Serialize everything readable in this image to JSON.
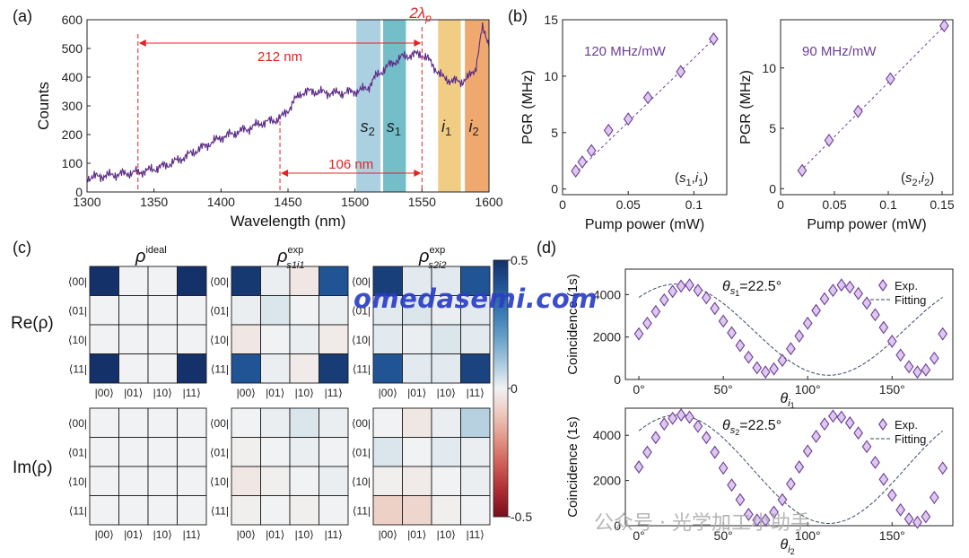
{
  "panel_labels": [
    "(a)",
    "(b)",
    "(c)",
    "(d)"
  ],
  "watermark": "omedasemi.com",
  "watermark_wechat": "公众号 · 光学加工小助手",
  "chart_data": [
    {
      "id": "a",
      "type": "line",
      "xlabel": "Wavelength (nm)",
      "ylabel": "Counts",
      "xlim": [
        1300,
        1600
      ],
      "ylim": [
        0,
        600
      ],
      "xticks": [
        "1300",
        "1350",
        "1400",
        "1450",
        "1500",
        "1550",
        "1600"
      ],
      "yticks": [
        "0",
        "100",
        "200",
        "300",
        "400",
        "500",
        "600"
      ],
      "series": [
        {
          "color": "#5b2a86",
          "x": [
            1300,
            1310,
            1320,
            1330,
            1340,
            1350,
            1360,
            1370,
            1380,
            1390,
            1400,
            1410,
            1420,
            1430,
            1440,
            1445,
            1450,
            1455,
            1460,
            1465,
            1470,
            1480,
            1490,
            1500,
            1505,
            1510,
            1515,
            1520,
            1525,
            1530,
            1535,
            1540,
            1545,
            1550,
            1555,
            1560,
            1565,
            1570,
            1575,
            1580,
            1585,
            1590,
            1595,
            1600
          ],
          "y": [
            50,
            55,
            60,
            65,
            70,
            80,
            95,
            115,
            140,
            165,
            190,
            205,
            220,
            240,
            250,
            260,
            285,
            320,
            345,
            350,
            350,
            345,
            345,
            350,
            355,
            365,
            400,
            420,
            440,
            455,
            470,
            475,
            480,
            480,
            460,
            430,
            400,
            390,
            385,
            385,
            400,
            430,
            570,
            520
          ]
        }
      ],
      "bands": [
        {
          "label": "s2",
          "from": 1501,
          "to": 1519,
          "color": "#9cc8dc"
        },
        {
          "label": "s1",
          "from": 1521,
          "to": 1538,
          "color": "#5ab3c0"
        },
        {
          "label": "i1",
          "from": 1562,
          "to": 1579,
          "color": "#efc46e"
        },
        {
          "label": "i2",
          "from": 1582,
          "to": 1600,
          "color": "#ec9a55"
        }
      ],
      "annotations": [
        {
          "text": "212 nm",
          "from": 1338,
          "to": 1550
        },
        {
          "text": "106 nm",
          "from": 1444,
          "to": 1550
        },
        {
          "text": "2λp",
          "at": 1550
        }
      ]
    },
    {
      "id": "b1",
      "type": "scatter",
      "xlabel": "Pump power (mW)",
      "ylabel": "PGR (MHz)",
      "xlim": [
        0,
        0.125
      ],
      "ylim": [
        -0.5,
        15
      ],
      "xticks": [
        "0",
        "0.05",
        "0.1"
      ],
      "yticks": [
        "0",
        "5",
        "10",
        "15"
      ],
      "annotation": "120 MHz/mW",
      "pair": "(s1,i1)",
      "x": [
        0.01,
        0.015,
        0.022,
        0.035,
        0.05,
        0.065,
        0.09,
        0.115
      ],
      "y": [
        1.6,
        2.4,
        3.4,
        5.2,
        6.2,
        8.1,
        10.4,
        13.3
      ],
      "fit_slope": 113.0,
      "fit_intercept": 0.3
    },
    {
      "id": "b2",
      "type": "scatter",
      "xlabel": "Pump power (mW)",
      "ylabel": "PGR (MHz)",
      "xlim": [
        0,
        0.16
      ],
      "ylim": [
        -0.5,
        14
      ],
      "xticks": [
        "0",
        "0.05",
        "0.1",
        "0.15"
      ],
      "yticks": [
        "0",
        "5",
        "10"
      ],
      "annotation": "90 MHz/mW",
      "pair": "(s2,i2)",
      "x": [
        0.02,
        0.045,
        0.072,
        0.102,
        0.152
      ],
      "y": [
        1.5,
        4.0,
        6.4,
        9.1,
        13.5
      ],
      "fit_slope": 90.0,
      "fit_intercept": -0.2
    },
    {
      "id": "c",
      "type": "heatmap",
      "col_titles": [
        "ρ",
        "ρ",
        "ρ"
      ],
      "col_title_sups": [
        "ideal",
        "exp",
        "exp"
      ],
      "col_title_subs": [
        "",
        "s1i1",
        "s2i2"
      ],
      "row_titles": [
        "Re(ρ)",
        "Im(ρ)"
      ],
      "row_labels": [
        "⟨00|",
        "⟨01|",
        "⟨10|",
        "⟨11|"
      ],
      "col_labels": [
        "|00⟩",
        "|01⟩",
        "|10⟩",
        "|11⟩"
      ],
      "colorbar": {
        "min": -0.5,
        "max": 0.5,
        "ticks": [
          "0.5",
          "0",
          "-0.5"
        ]
      },
      "matrices": {
        "re_ideal": [
          [
            0.5,
            0,
            0,
            0.5
          ],
          [
            0,
            0,
            0,
            0
          ],
          [
            0,
            0,
            0,
            0
          ],
          [
            0.5,
            0,
            0,
            0.5
          ]
        ],
        "re_s1i1": [
          [
            0.48,
            0.01,
            -0.03,
            0.4
          ],
          [
            0.01,
            0.03,
            0.0,
            0.01
          ],
          [
            -0.03,
            0.0,
            0.01,
            -0.02
          ],
          [
            0.4,
            0.01,
            -0.02,
            0.47
          ]
        ],
        "re_s2i2": [
          [
            0.46,
            0.02,
            0.02,
            0.4
          ],
          [
            0.02,
            0.03,
            0.01,
            0.02
          ],
          [
            0.02,
            0.01,
            0.03,
            0.02
          ],
          [
            0.4,
            0.02,
            0.02,
            0.45
          ]
        ],
        "im_ideal": [
          [
            0,
            0,
            0,
            0
          ],
          [
            0,
            0,
            0,
            0
          ],
          [
            0,
            0,
            0,
            0
          ],
          [
            0,
            0,
            0,
            0
          ]
        ],
        "im_s1i1": [
          [
            0,
            0.01,
            0.03,
            0.01
          ],
          [
            -0.01,
            0,
            0.01,
            0.0
          ],
          [
            -0.03,
            -0.01,
            0,
            0.01
          ],
          [
            -0.01,
            0.0,
            -0.01,
            0
          ]
        ],
        "im_s2i2": [
          [
            0,
            -0.03,
            0.01,
            0.08
          ],
          [
            0.03,
            0,
            0.02,
            0.01
          ],
          [
            -0.01,
            -0.02,
            0,
            0.01
          ],
          [
            -0.08,
            -0.07,
            -0.01,
            0
          ]
        ]
      }
    },
    {
      "id": "d1",
      "type": "scatter",
      "xlabel": "θi1",
      "ylabel": "Coincidence (1s)",
      "title": "θs1=22.5°",
      "xlim": [
        -8,
        186
      ],
      "ylim": [
        0,
        5200
      ],
      "xticks": [
        "0°",
        "50°",
        "100°",
        "150°"
      ],
      "yticks": [
        "0",
        "2000",
        "4000"
      ],
      "legend": [
        "Exp.",
        "Fitting"
      ],
      "legend_position": "top-right",
      "x": [
        0,
        5,
        10,
        15,
        20,
        25,
        30,
        35,
        40,
        45,
        50,
        55,
        60,
        65,
        70,
        75,
        80,
        85,
        90,
        95,
        100,
        105,
        110,
        115,
        120,
        125,
        130,
        135,
        140,
        145,
        150,
        155,
        160,
        165,
        170,
        175,
        180
      ],
      "y": [
        2150,
        2650,
        3200,
        3750,
        4150,
        4400,
        4450,
        4200,
        3850,
        3350,
        2750,
        2200,
        1600,
        1050,
        550,
        350,
        500,
        900,
        1450,
        2050,
        2650,
        3250,
        3800,
        4200,
        4450,
        4350,
        4050,
        3600,
        3050,
        2450,
        1800,
        1150,
        600,
        350,
        450,
        1000,
        2150
      ],
      "fit_amplitude": 2150,
      "fit_offset": 2350,
      "fit_phase_deg": 22.5
    },
    {
      "id": "d2",
      "type": "scatter",
      "xlabel": "θi2",
      "ylabel": "Coincidence (1s)",
      "title": "θs2=22.5°",
      "xlim": [
        -8,
        186
      ],
      "ylim": [
        0,
        5200
      ],
      "xticks": [
        "0°",
        "50°",
        "100°",
        "150°"
      ],
      "yticks": [
        "0",
        "2000",
        "4000"
      ],
      "legend": [
        "Exp.",
        "Fitting"
      ],
      "legend_position": "top-right",
      "x": [
        0,
        5,
        10,
        15,
        20,
        25,
        30,
        35,
        40,
        45,
        50,
        55,
        60,
        65,
        70,
        75,
        80,
        85,
        90,
        95,
        100,
        105,
        110,
        115,
        120,
        125,
        130,
        135,
        140,
        145,
        150,
        155,
        160,
        165,
        170,
        175,
        180
      ],
      "y": [
        2600,
        3250,
        3900,
        4500,
        4750,
        4900,
        4800,
        4400,
        3900,
        3250,
        2550,
        1800,
        1150,
        500,
        250,
        250,
        600,
        1150,
        1850,
        2600,
        3300,
        3950,
        4500,
        4850,
        4800,
        4550,
        4100,
        3500,
        2800,
        2050,
        1350,
        700,
        300,
        150,
        400,
        1250,
        2550
      ],
      "fit_amplitude": 2400,
      "fit_offset": 2500,
      "fit_phase_deg": 22.5
    }
  ]
}
